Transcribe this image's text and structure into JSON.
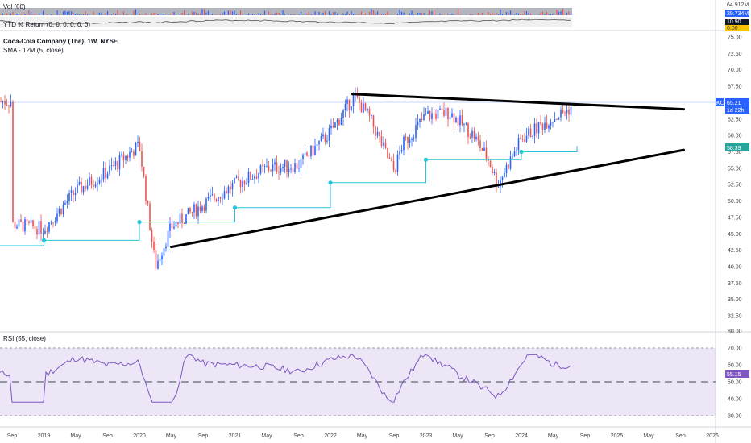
{
  "legend": {
    "vol": "Vol (60)",
    "ytd": "YTD % Return (0, 0, 0, 0, 0, 0)",
    "title": "Coca-Cola Company (The), 1W, NYSE",
    "sma": "SMA - 12M (5, close)",
    "rsi": "RSI (55, close)"
  },
  "volume_axis": {
    "ticks": [
      "64.912M",
      "29.734M"
    ]
  },
  "ytd_axis": {
    "ticks": [
      "10.90",
      "0.00"
    ]
  },
  "price_axis": {
    "ticks": [
      "75.00",
      "72.50",
      "70.00",
      "67.50",
      "65.00",
      "62.50",
      "60.00",
      "57.50",
      "55.00",
      "52.50",
      "50.00",
      "47.50",
      "45.00",
      "42.50",
      "40.00",
      "37.50",
      "35.00",
      "32.50"
    ]
  },
  "rsi_axis": {
    "ticks": [
      "80.00",
      "70.00",
      "60.00",
      "55.15",
      "50.00",
      "40.00",
      "30.00"
    ]
  },
  "badges": {
    "ticker": "KO",
    "last_price": "65.21",
    "countdown": "1d 22h",
    "sma_value": "58.39",
    "ytd_value": "10.90",
    "rsi_value": "55.15"
  },
  "time_axis": {
    "labels": [
      "Sep",
      "2019",
      "May",
      "Sep",
      "2020",
      "May",
      "Sep",
      "2021",
      "May",
      "Sep",
      "2022",
      "May",
      "Sep",
      "2023",
      "May",
      "Sep",
      "2024",
      "May",
      "Sep",
      "2025",
      "May",
      "Sep",
      "2026"
    ]
  },
  "colors": {
    "up": "#2962ff",
    "down": "#ef5350",
    "sma": "#26c6da",
    "rsi": "#7e57c2",
    "trend": "#000000",
    "badge_blue": "#2962ff",
    "badge_green": "#26a69a",
    "badge_yellow": "#f7c600"
  },
  "chart_data": {
    "type": "candlestick",
    "ticker": "KO",
    "x": [
      "Sep 2018",
      "Jan 2019",
      "May 2019",
      "Sep 2019",
      "Jan 2020",
      "Mar 2020",
      "May 2020",
      "Sep 2020",
      "Jan 2021",
      "May 2021",
      "Sep 2021",
      "Jan 2022",
      "Apr 2022",
      "Jun 2022",
      "Sep 2022",
      "Oct 2022",
      "Jan 2023",
      "Apr 2023",
      "Jul 2023",
      "Sep 2023",
      "Oct 2023",
      "Jan 2024",
      "Apr 2024",
      "Jul 2024",
      "Aug 2024"
    ],
    "close": [
      46.5,
      45.8,
      51.5,
      54.5,
      58.5,
      40.0,
      46.0,
      49.5,
      52.5,
      55.0,
      55.5,
      60.5,
      66.0,
      62.5,
      54.5,
      58.5,
      63.0,
      63.5,
      60.0,
      56.0,
      52.5,
      59.5,
      62.0,
      64.0,
      65.21
    ],
    "sma_12m": [
      {
        "x": "Sep 2018",
        "y": 43.2
      },
      {
        "x": "Jan 2019",
        "y": 44.0
      },
      {
        "x": "Jan 2020",
        "y": 46.8
      },
      {
        "x": "Jan 2021",
        "y": 49.0
      },
      {
        "x": "Jan 2022",
        "y": 52.8
      },
      {
        "x": "Jan 2023",
        "y": 56.3
      },
      {
        "x": "Jan 2024",
        "y": 57.5
      },
      {
        "x": "Aug 2024",
        "y": 58.39
      }
    ],
    "trendlines": [
      {
        "from": {
          "x": "May 2022",
          "y": 66.3
        },
        "to": {
          "x": "Sep 2025",
          "y": 64.0
        }
      },
      {
        "from": {
          "x": "May 2020",
          "y": 43.0
        },
        "to": {
          "x": "Sep 2025",
          "y": 57.8
        }
      }
    ],
    "rsi_level": 55.15,
    "rsi_ylim": [
      25,
      80
    ],
    "ylim": [
      30,
      76
    ]
  }
}
